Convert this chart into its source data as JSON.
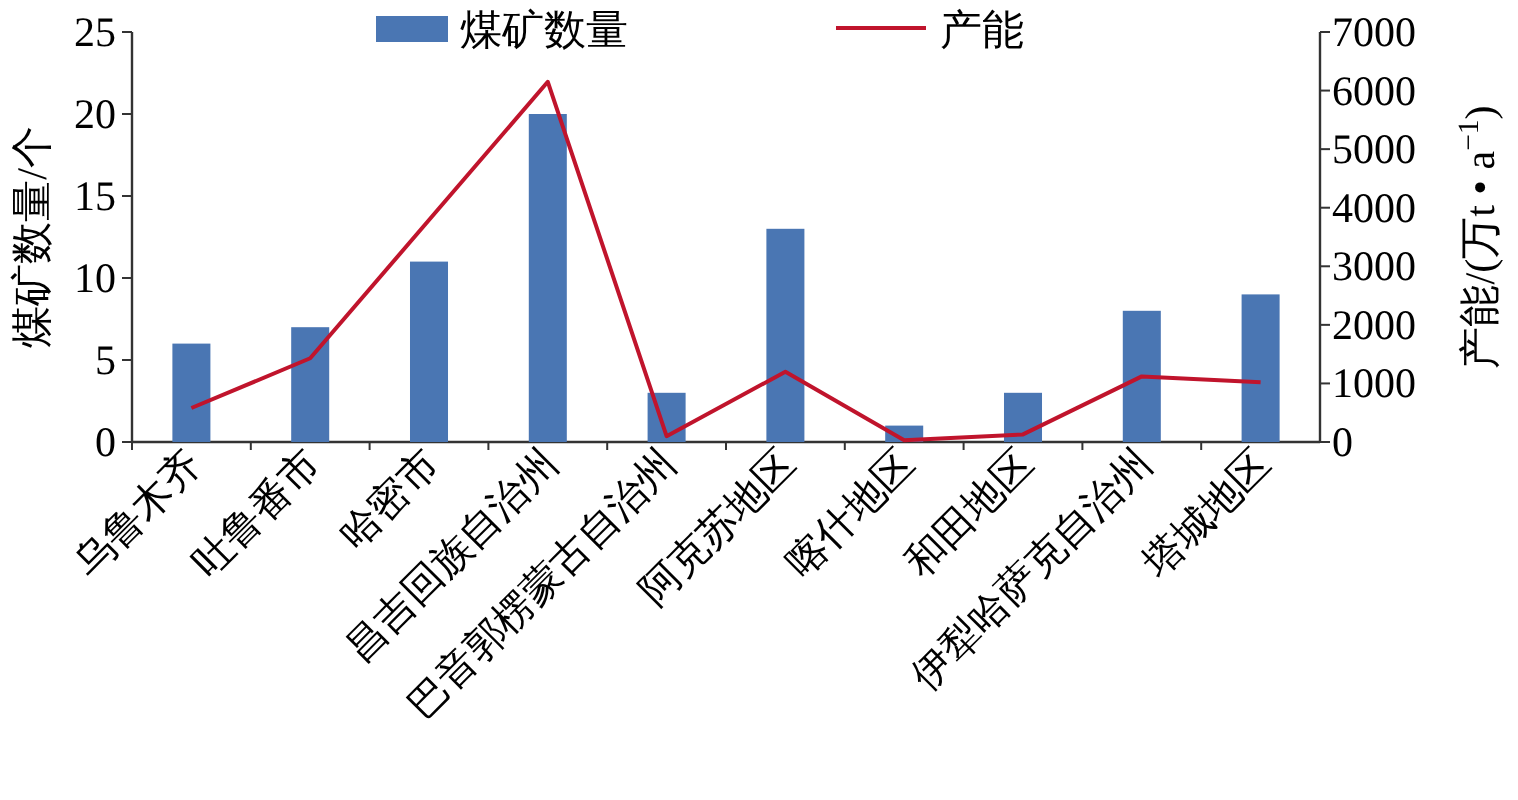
{
  "chart_data": {
    "type": "bar",
    "categories": [
      "乌鲁木齐",
      "吐鲁番市",
      "哈密市",
      "昌吉回族自治州",
      "巴音郭楞蒙古自治州",
      "阿克苏地区",
      "喀什地区",
      "和田地区",
      "伊犁哈萨克自治州",
      "塔城地区"
    ],
    "series": [
      {
        "name": "煤矿数量",
        "color": "#4a76b3",
        "values": [
          6,
          7,
          11,
          20,
          3,
          13,
          1,
          3,
          8,
          9
        ]
      },
      {
        "name": "产能",
        "type": "line",
        "axis": "y2",
        "color": "#c0142c",
        "values": [
          580,
          1430,
          3790,
          6150,
          100,
          1200,
          30,
          130,
          1120,
          1020
        ]
      }
    ],
    "ylabel": "煤矿数量/个",
    "y2label": "产能/(万t • a$^{−1}$)",
    "ylim": [
      0,
      25
    ],
    "yticks": [
      0,
      5,
      10,
      15,
      20,
      25
    ],
    "y2lim": [
      0,
      7000
    ],
    "y2ticks": [
      0,
      1000,
      2000,
      3000,
      4000,
      5000,
      6000,
      7000
    ],
    "legend": "top",
    "grid": false
  }
}
